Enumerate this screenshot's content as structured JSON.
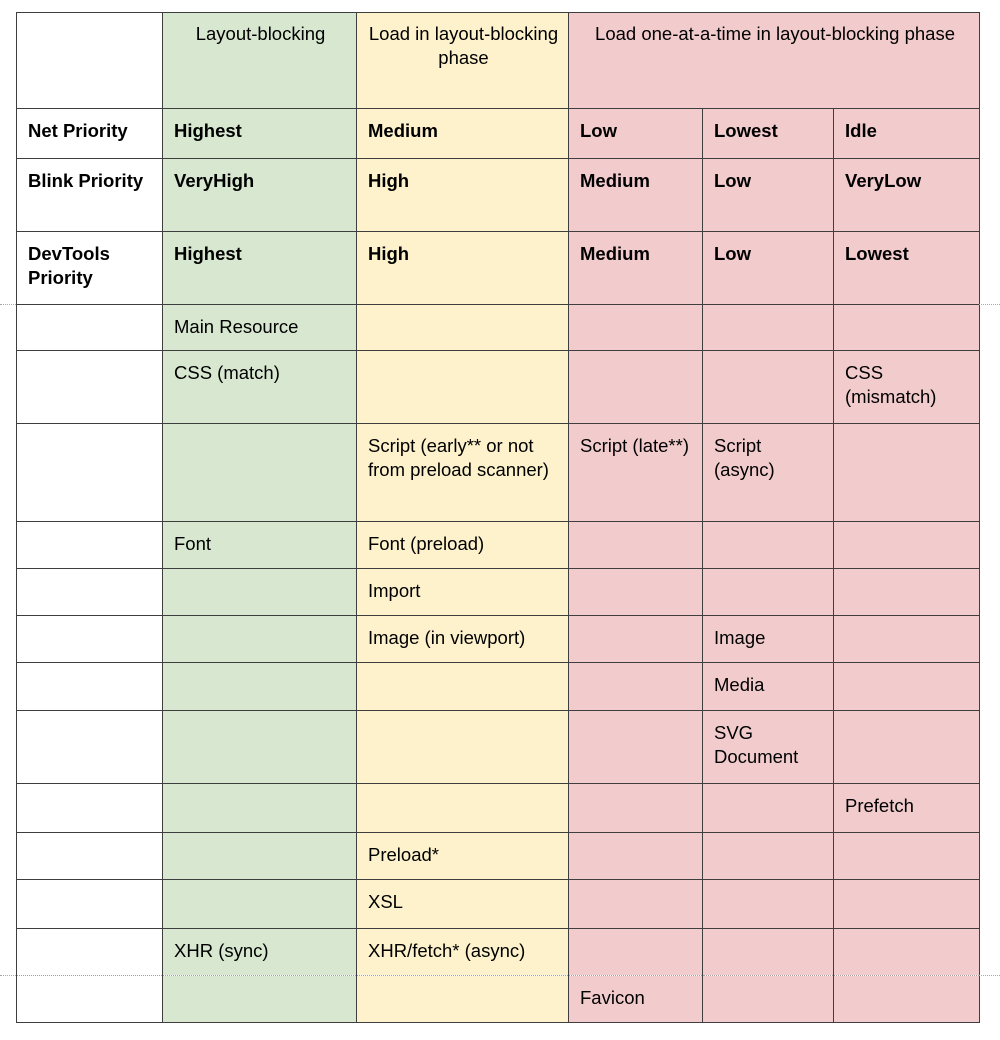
{
  "colors": {
    "green_fill": "#d8e7d0",
    "yellow_fill": "#fdf2cb",
    "pink_fill": "#f2cbcd",
    "border": "#3e3e3e",
    "page_break": "#a8a8a8"
  },
  "table": {
    "column_headers": {
      "green": "Layout-blocking",
      "yellow": "Load in layout-blocking phase",
      "pink_span": "Load one-at-a-time in layout-blocking phase"
    },
    "rows": [
      {
        "cells": [
          "",
          "Layout-blocking",
          "Load in layout-blocking phase",
          "Load one-at-a-time in layout-blocking phase"
        ]
      },
      {
        "cells": [
          "Net Priority",
          "Highest",
          "Medium",
          "Low",
          "Lowest",
          "Idle"
        ]
      },
      {
        "cells": [
          "Blink Priority",
          "VeryHigh",
          "High",
          "Medium",
          "Low",
          "VeryLow"
        ]
      },
      {
        "cells": [
          "DevTools Priority",
          "Highest",
          "High",
          "Medium",
          "Low",
          "Lowest"
        ]
      },
      {
        "cells": [
          "",
          "Main Resource",
          "",
          "",
          "",
          ""
        ]
      },
      {
        "cells": [
          "",
          "CSS (match)",
          "",
          "",
          "",
          "CSS (mismatch)"
        ]
      },
      {
        "cells": [
          "",
          "",
          "Script (early** or not from preload scanner)",
          "Script (late**)",
          "Script (async)",
          ""
        ]
      },
      {
        "cells": [
          "",
          "Font",
          "Font (preload)",
          "",
          "",
          ""
        ]
      },
      {
        "cells": [
          "",
          "",
          "Import",
          "",
          "",
          ""
        ]
      },
      {
        "cells": [
          "",
          "",
          "Image (in viewport)",
          "",
          "Image",
          ""
        ]
      },
      {
        "cells": [
          "",
          "",
          "",
          "",
          "Media",
          ""
        ]
      },
      {
        "cells": [
          "",
          "",
          "",
          "",
          "SVG Document",
          ""
        ]
      },
      {
        "cells": [
          "",
          "",
          "",
          "",
          "",
          "Prefetch"
        ]
      },
      {
        "cells": [
          "",
          "",
          "Preload*",
          "",
          "",
          ""
        ]
      },
      {
        "cells": [
          "",
          "",
          "XSL",
          "",
          "",
          ""
        ]
      },
      {
        "cells": [
          "",
          "XHR (sync)",
          "XHR/fetch* (async)",
          "",
          "",
          ""
        ]
      },
      {
        "cells": [
          "",
          "",
          "",
          "Favicon",
          "",
          ""
        ]
      }
    ]
  }
}
